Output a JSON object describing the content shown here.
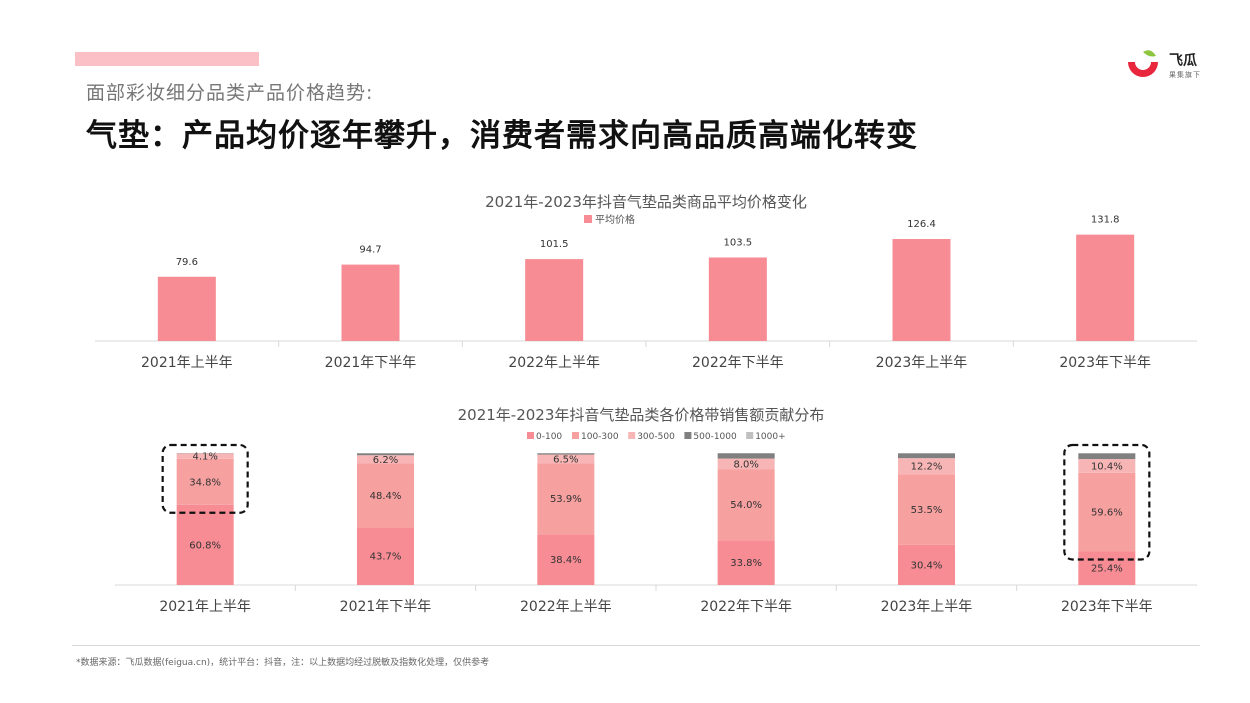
{
  "header": {
    "subtitle": "面部彩妆细分品类产品价格趋势:",
    "headline": "气垫：产品均价逐年攀升，消费者需求向高品质高端化转变"
  },
  "logo": {
    "name": "飞瓜",
    "sub": "果集旗下"
  },
  "colors": {
    "accent_bar": "#fbc0c6",
    "bar": "#f78c94",
    "seg_0_100": "#f78c94",
    "seg_100_300": "#f7a0a0",
    "seg_300_500": "#f7b5b5",
    "seg_500_1000": "#808080",
    "seg_1000_plus": "#c0c0c0"
  },
  "chart_data": [
    {
      "type": "bar",
      "title": "2021年-2023年抖音气垫品类商品平均价格变化",
      "categories": [
        "2021年上半年",
        "2021年下半年",
        "2022年上半年",
        "2022年下半年",
        "2023年上半年",
        "2023年下半年"
      ],
      "series": [
        {
          "name": "平均价格",
          "values": [
            79.6,
            94.7,
            101.5,
            103.5,
            126.4,
            131.8
          ]
        }
      ],
      "data_labels": [
        "79.6",
        "94.7",
        "101.5",
        "103.5",
        "126.4",
        "131.8"
      ],
      "ylim": [
        0,
        145
      ],
      "grid": false,
      "legend": "top-center"
    },
    {
      "type": "bar",
      "stacked": true,
      "percent": true,
      "title": "2021年-2023年抖音气垫品类各价格带销售额贡献分布",
      "categories": [
        "2021年上半年",
        "2021年下半年",
        "2022年上半年",
        "2022年下半年",
        "2023年上半年",
        "2023年下半年"
      ],
      "series": [
        {
          "name": "0-100",
          "values": [
            60.8,
            43.7,
            38.4,
            33.8,
            30.4,
            25.4
          ],
          "labels": [
            "60.8%",
            "43.7%",
            "38.4%",
            "33.8%",
            "30.4%",
            "25.4%"
          ]
        },
        {
          "name": "100-300",
          "values": [
            34.8,
            48.4,
            53.9,
            54.0,
            53.5,
            59.6
          ],
          "labels": [
            "34.8%",
            "48.4%",
            "53.9%",
            "54.0%",
            "53.5%",
            "59.6%"
          ]
        },
        {
          "name": "300-500",
          "values": [
            4.1,
            6.2,
            6.5,
            8.0,
            12.2,
            10.4
          ],
          "labels": [
            "4.1%",
            "6.2%",
            "6.5%",
            "8.0%",
            "12.2%",
            "10.4%"
          ]
        },
        {
          "name": "500-1000",
          "values": [
            0.2,
            1.3,
            1.0,
            4.0,
            3.5,
            4.2
          ],
          "labels": []
        },
        {
          "name": "1000+",
          "values": [
            0.1,
            0.4,
            0.2,
            0.2,
            0.4,
            0.4
          ],
          "labels": []
        }
      ],
      "highlighted_categories": [
        "2021年上半年",
        "2023年下半年"
      ],
      "ylim": [
        0,
        100
      ],
      "grid": false,
      "legend": "top-center"
    }
  ],
  "footnote": "*数据来源：飞瓜数据(feigua.cn)，统计平台：抖音，注：以上数据均经过脱敏及指数化处理，仅供参考"
}
